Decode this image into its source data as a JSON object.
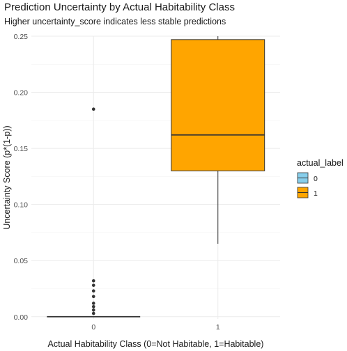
{
  "chart_data": {
    "type": "boxplot",
    "title": "Prediction Uncertainty by Actual Habitability Class",
    "subtitle": "Higher uncertainty_score indicates less stable predictions",
    "xlabel": "Actual Habitability Class (0=Not Habitable, 1=Habitable)",
    "ylabel": "Uncertainty Score (p*(1-p))",
    "categories": [
      "0",
      "1"
    ],
    "ylim": [
      -0.002,
      0.25
    ],
    "yticks": [
      0.0,
      0.05,
      0.1,
      0.15,
      0.2,
      0.25
    ],
    "ytick_labels": [
      "0.00",
      "0.05",
      "0.10",
      "0.15",
      "0.20",
      "0.25"
    ],
    "grid": true,
    "legend": {
      "title": "actual_label",
      "placement": "right",
      "entries": [
        {
          "label": "0",
          "color": "#87CEEB"
        },
        {
          "label": "1",
          "color": "#FFA500"
        }
      ]
    },
    "boxes": [
      {
        "category": "0",
        "color": "#87CEEB",
        "min": 0.0,
        "q1": 0.0,
        "median": 0.0,
        "q3": 0.0,
        "max": 0.0,
        "outliers": [
          0.185,
          0.032,
          0.028,
          0.023,
          0.018,
          0.012,
          0.009,
          0.006,
          0.003
        ]
      },
      {
        "category": "1",
        "color": "#FFA500",
        "min": 0.065,
        "q1": 0.13,
        "median": 0.162,
        "q3": 0.247,
        "max": 0.25,
        "outliers": []
      }
    ]
  }
}
